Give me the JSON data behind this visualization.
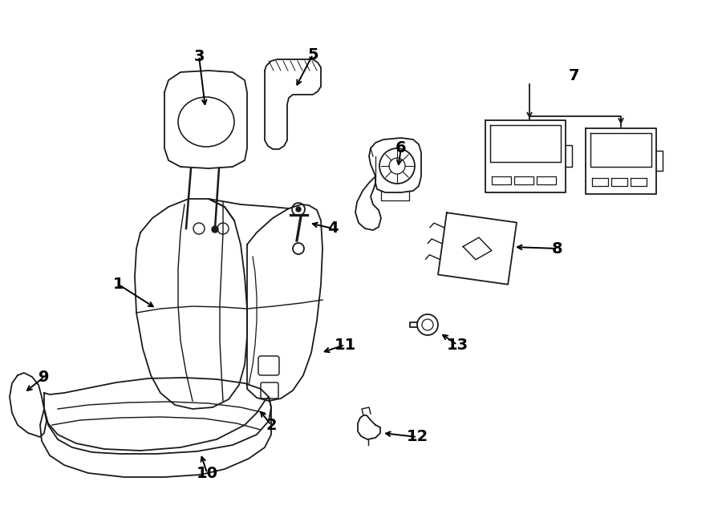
{
  "bg_color": "#ffffff",
  "line_color": "#1a1a1a",
  "fig_width": 9.0,
  "fig_height": 6.61,
  "dpi": 100,
  "label_fontsize": 14,
  "lw": 1.3
}
